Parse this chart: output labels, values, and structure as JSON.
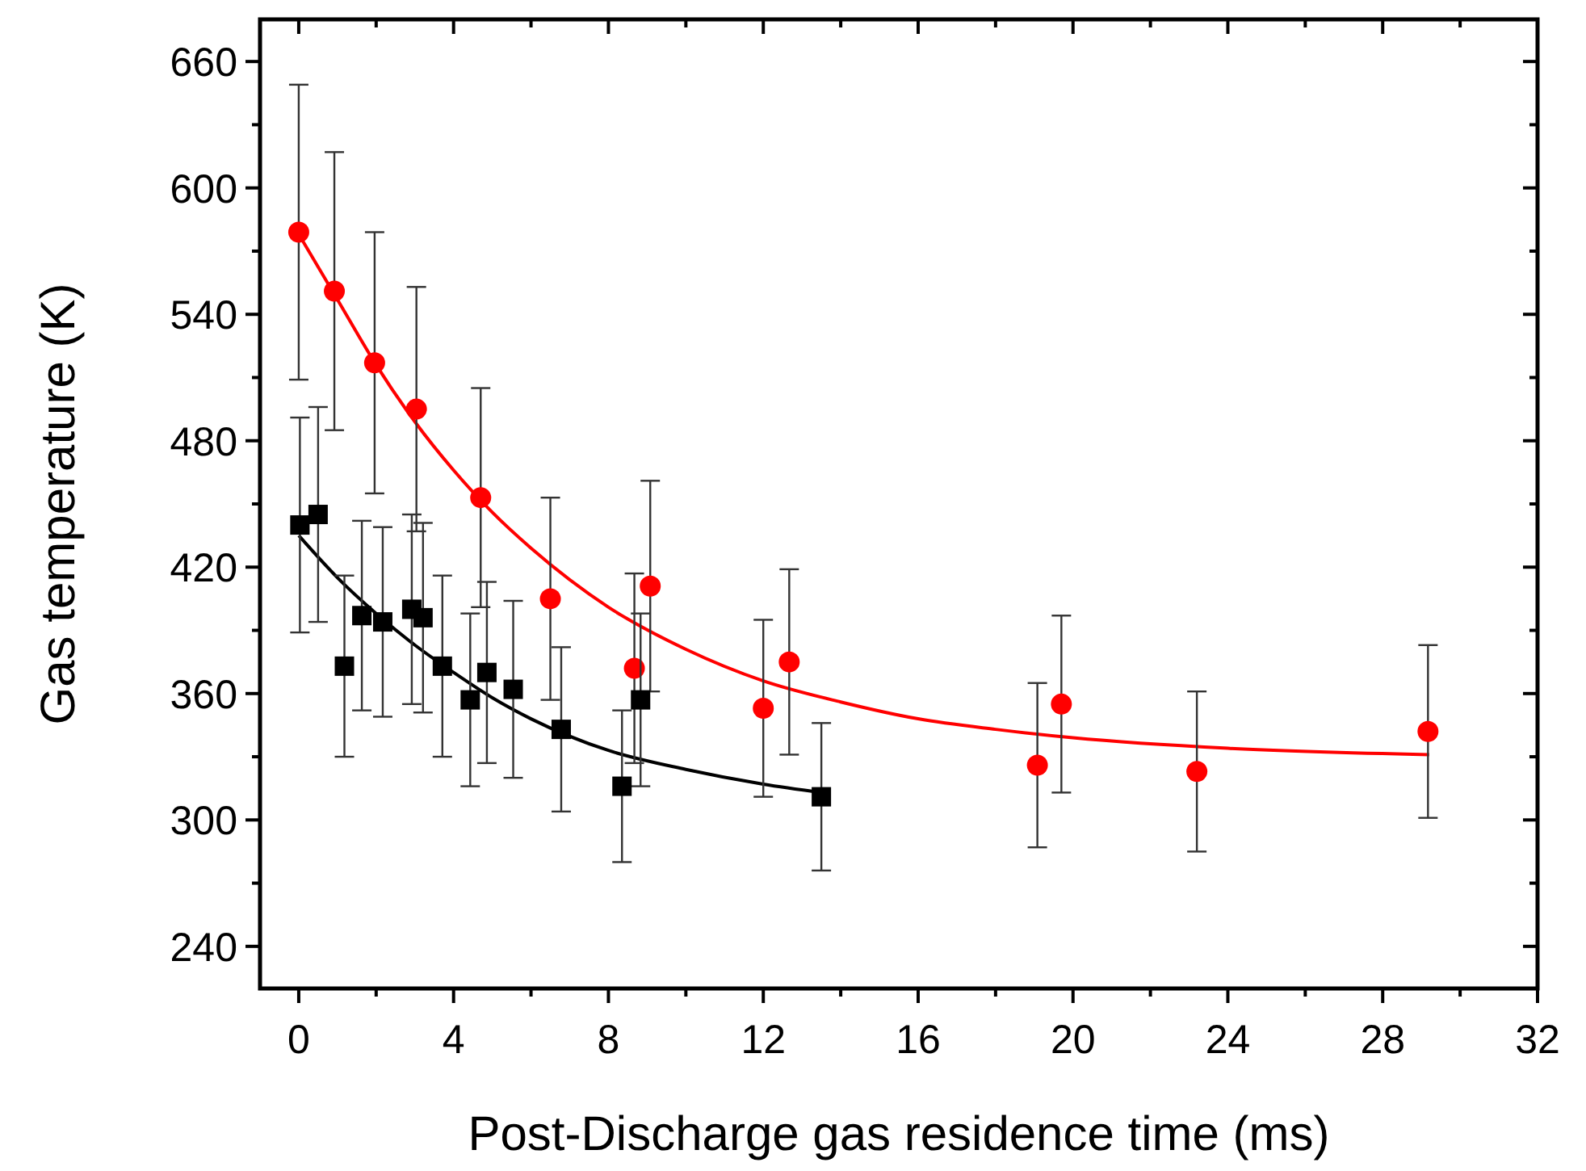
{
  "chart_data": {
    "type": "scatter",
    "xlabel": "Post-Discharge gas residence time (ms)",
    "ylabel": "Gas temperature (K)",
    "xlim": [
      -1,
      32
    ],
    "ylim": [
      220,
      680
    ],
    "xticks": [
      0,
      {
        "value": 2,
        "label": null
      },
      4,
      {
        "value": 6,
        "label": null
      },
      8,
      {
        "value": 10,
        "label": null
      },
      12,
      {
        "value": 14,
        "label": null
      },
      16,
      {
        "value": 18,
        "label": null
      },
      20,
      {
        "value": 22,
        "label": null
      },
      24,
      {
        "value": 26,
        "label": null
      },
      28,
      {
        "value": 30,
        "label": null
      },
      32
    ],
    "yticks": [
      240,
      {
        "value": 270,
        "label": null
      },
      300,
      {
        "value": 330,
        "label": null
      },
      360,
      {
        "value": 390,
        "label": null
      },
      420,
      {
        "value": 450,
        "label": null
      },
      480,
      {
        "value": 510,
        "label": null
      },
      540,
      {
        "value": 570,
        "label": null
      },
      600,
      {
        "value": 630,
        "label": null
      },
      660
    ],
    "grid": false,
    "series": [
      {
        "type": "line",
        "color": "#ff0000",
        "marker": "none",
        "x": [
          0,
          1,
          2,
          3,
          4,
          5,
          6,
          8,
          10,
          12,
          14,
          16,
          18,
          20,
          24,
          29.2
        ],
        "values": [
          578,
          547,
          516,
          489,
          466,
          446,
          429,
          401,
          381,
          366,
          356,
          348,
          343,
          339,
          334,
          331
        ]
      },
      {
        "type": "line",
        "color": "#000000",
        "marker": "none",
        "x": [
          0,
          1,
          2,
          3,
          4,
          5,
          6,
          8,
          10,
          12,
          13.5
        ],
        "values": [
          435,
          415,
          398,
          383,
          370,
          358,
          348,
          333,
          324,
          317,
          313
        ]
      },
      {
        "color": "#ff0000",
        "marker": "circle",
        "x": [
          0,
          0.92,
          1.96,
          3.04,
          4.7,
          6.5,
          8.67,
          9.08,
          12.0,
          12.67,
          19.08,
          19.7,
          23.2,
          29.17
        ],
        "values": [
          579,
          551,
          517,
          495,
          453,
          405,
          372,
          411,
          353,
          375,
          326,
          355,
          323,
          342
        ],
        "errors": [
          70,
          66,
          62,
          58,
          52,
          48,
          45,
          50,
          42,
          44,
          39,
          42,
          38,
          41
        ]
      },
      {
        "color": "#000000",
        "marker": "square",
        "x": [
          0.03,
          0.5,
          1.18,
          1.63,
          2.17,
          2.92,
          3.21,
          3.71,
          4.43,
          4.86,
          5.54,
          6.78,
          8.35,
          8.83,
          13.5
        ],
        "values": [
          440,
          445,
          373,
          397,
          394,
          400,
          396,
          373,
          357,
          370,
          362,
          343,
          316,
          357,
          311
        ],
        "errors": [
          51,
          51,
          43,
          45,
          45,
          45,
          45,
          43,
          41,
          43,
          42,
          39,
          36,
          41,
          35
        ]
      }
    ]
  }
}
